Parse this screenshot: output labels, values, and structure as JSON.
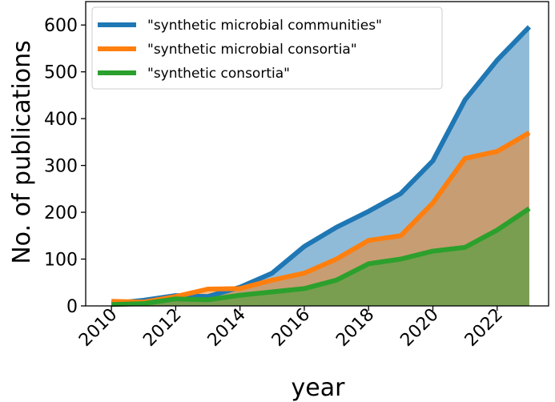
{
  "chart_data": {
    "type": "area",
    "x": [
      2010,
      2011,
      2012,
      2013,
      2014,
      2015,
      2016,
      2017,
      2018,
      2019,
      2020,
      2021,
      2022,
      2023
    ],
    "series": [
      {
        "name": "\"synthetic microbial communities\"",
        "color": "#1f77b4",
        "values": [
          5,
          12,
          22,
          20,
          40,
          70,
          127,
          168,
          202,
          240,
          310,
          440,
          525,
          596
        ]
      },
      {
        "name": "\"synthetic microbial consortia\"",
        "color": "#ff7f0e",
        "values": [
          10,
          8,
          20,
          36,
          37,
          55,
          70,
          100,
          140,
          150,
          220,
          315,
          330,
          370
        ]
      },
      {
        "name": "\"synthetic consortia\"",
        "color": "#2ca02c",
        "values": [
          3,
          5,
          15,
          13,
          23,
          30,
          37,
          55,
          90,
          100,
          117,
          125,
          162,
          208
        ]
      }
    ],
    "xlabel": "year",
    "ylabel": "No. of publications",
    "xlim": [
      2009.2,
      2023.6
    ],
    "ylim": [
      0,
      650
    ],
    "xticks": [
      2010,
      2012,
      2014,
      2016,
      2018,
      2020,
      2022
    ],
    "yticks": [
      0,
      100,
      200,
      300,
      400,
      500,
      600
    ],
    "grid": false,
    "legend_position": "top-left"
  }
}
